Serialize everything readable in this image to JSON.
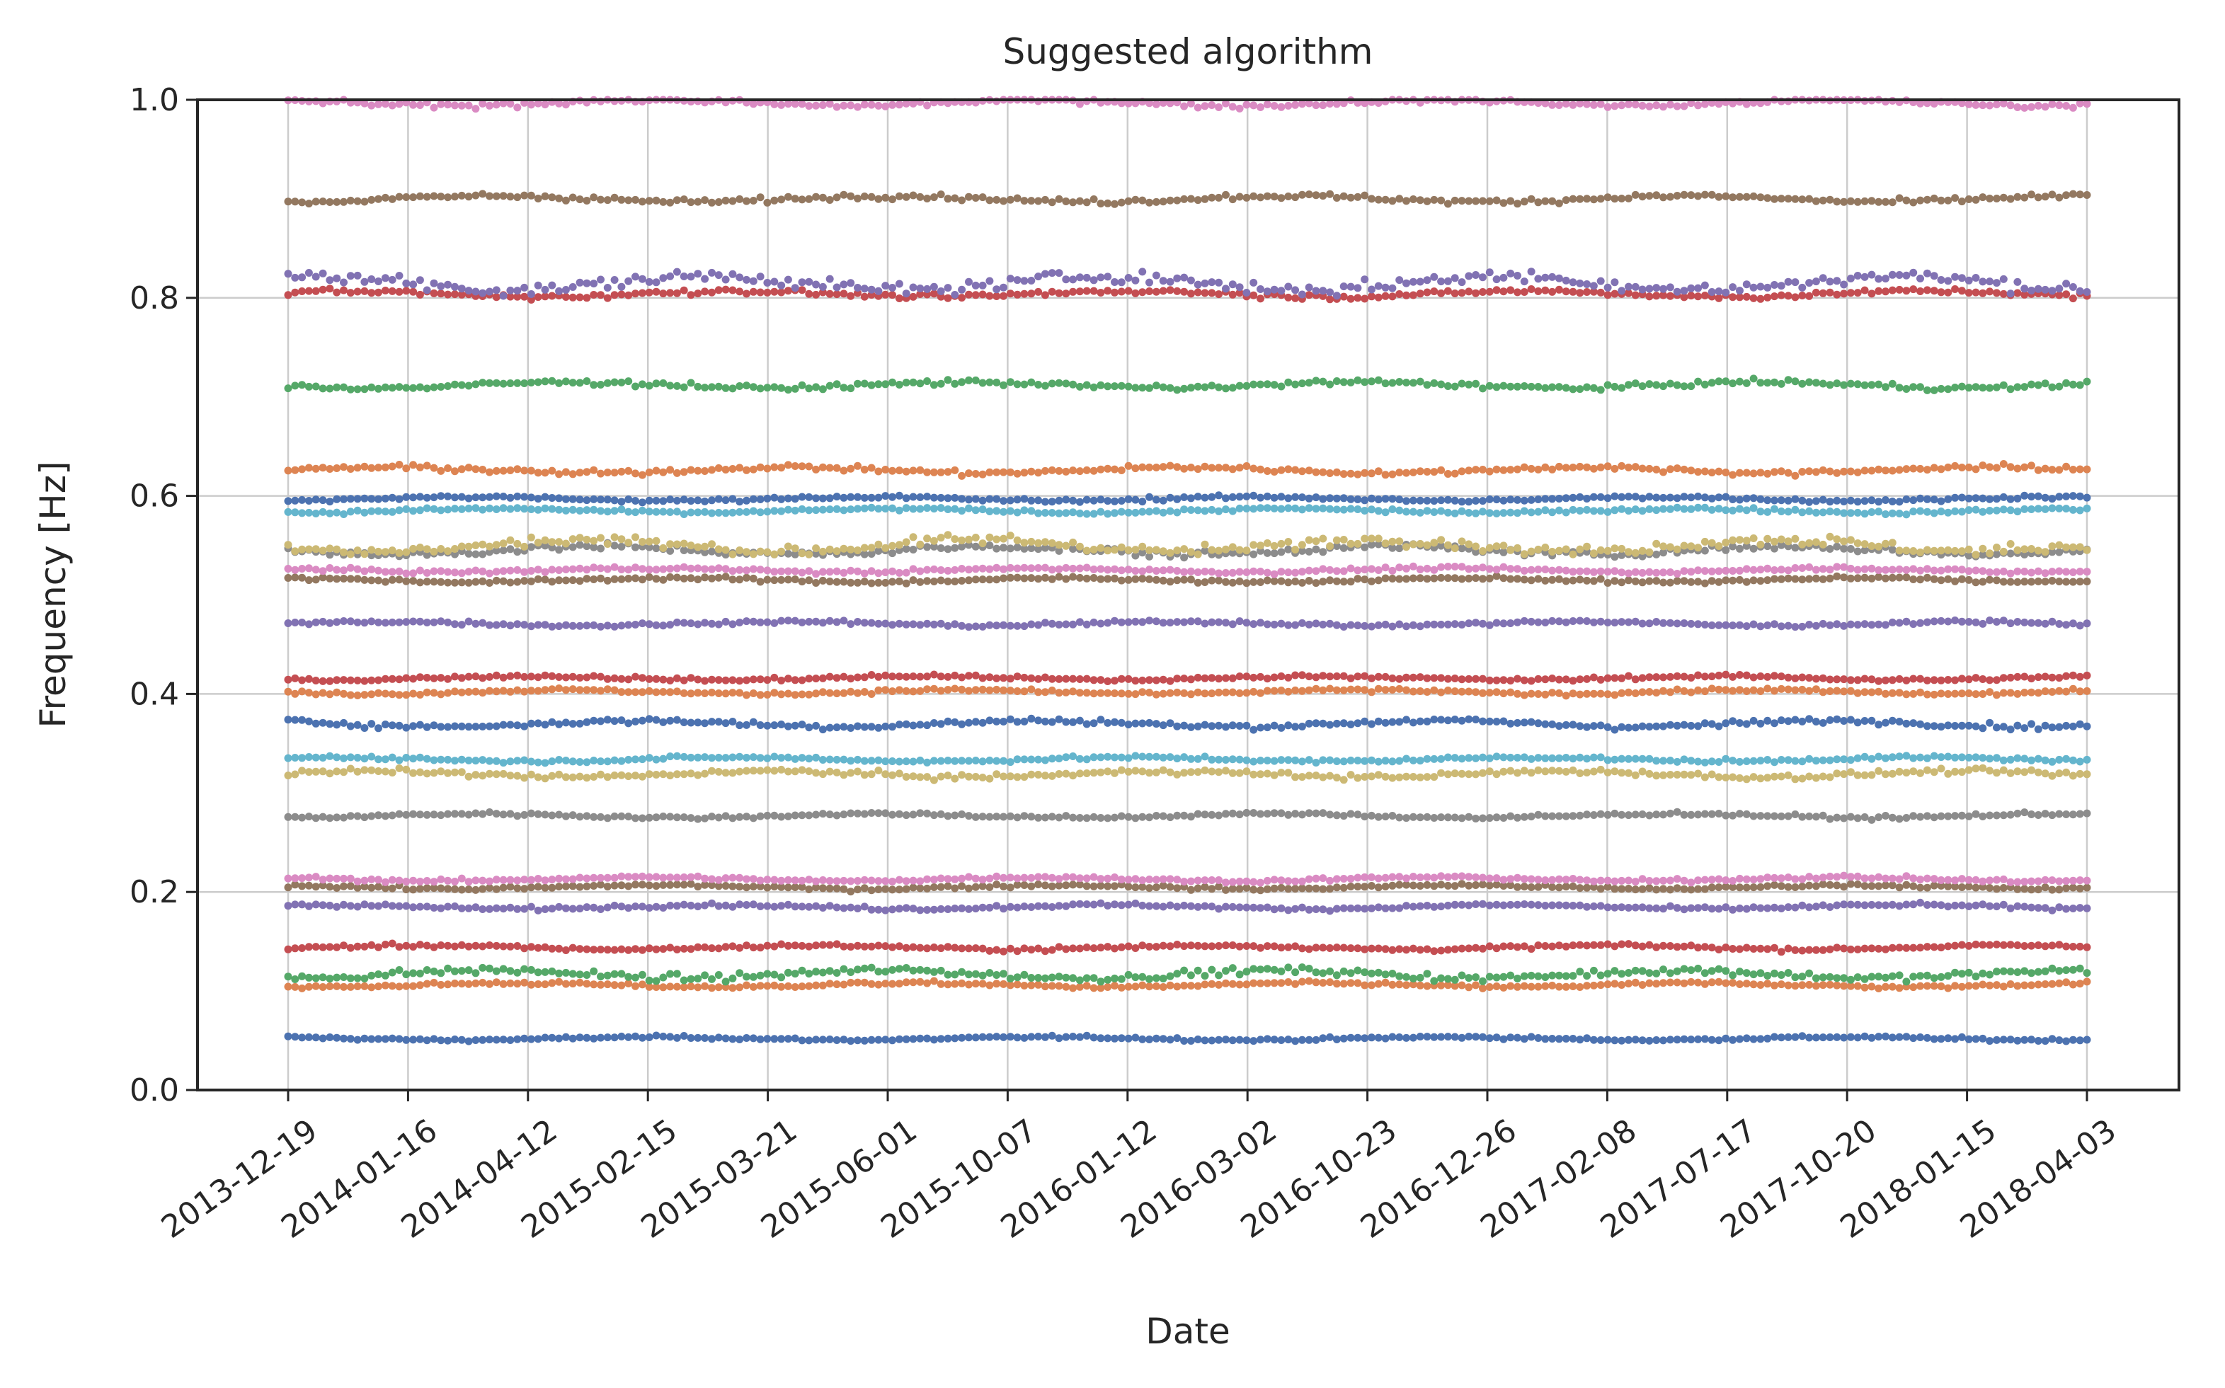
{
  "chart_data": {
    "type": "scatter",
    "title": "Suggested algorithm",
    "xlabel": "Date",
    "ylabel": "Frequency [Hz]",
    "x_tick_labels": [
      "2013-12-19",
      "2014-01-16",
      "2014-04-12",
      "2015-02-15",
      "2015-03-21",
      "2015-06-01",
      "2015-10-07",
      "2016-01-12",
      "2016-03-02",
      "2016-10-23",
      "2016-12-26",
      "2017-02-08",
      "2017-07-17",
      "2017-10-20",
      "2018-01-15",
      "2018-04-03"
    ],
    "y_tick_labels": [
      "0.0",
      "0.2",
      "0.4",
      "0.6",
      "0.8",
      "1.0"
    ],
    "y_ticks": [
      0.0,
      0.2,
      0.4,
      0.6,
      0.8,
      1.0
    ],
    "ylim": [
      0.0,
      1.0
    ],
    "grid": true,
    "legend": "none",
    "series": [
      {
        "level": 0.052,
        "spread": 0.0015,
        "color": "#4c72b0"
      },
      {
        "level": 0.106,
        "spread": 0.002,
        "color": "#dd8452"
      },
      {
        "level": 0.117,
        "spread": 0.004,
        "color": "#55a868"
      },
      {
        "level": 0.144,
        "spread": 0.002,
        "color": "#c44e52"
      },
      {
        "level": 0.185,
        "spread": 0.002,
        "color": "#8172b3"
      },
      {
        "level": 0.205,
        "spread": 0.002,
        "color": "#937860"
      },
      {
        "level": 0.213,
        "spread": 0.002,
        "color": "#da8bc3"
      },
      {
        "level": 0.277,
        "spread": 0.002,
        "color": "#8c8c8c"
      },
      {
        "level": 0.319,
        "spread": 0.003,
        "color": "#ccb974"
      },
      {
        "level": 0.334,
        "spread": 0.002,
        "color": "#64b5cd"
      },
      {
        "level": 0.37,
        "spread": 0.003,
        "color": "#4c72b0"
      },
      {
        "level": 0.402,
        "spread": 0.002,
        "color": "#dd8452"
      },
      {
        "level": 0.416,
        "spread": 0.002,
        "color": "#c44e52"
      },
      {
        "level": 0.471,
        "spread": 0.002,
        "color": "#8172b3"
      },
      {
        "level": 0.515,
        "spread": 0.002,
        "color": "#937860"
      },
      {
        "level": 0.525,
        "spread": 0.002,
        "color": "#da8bc3"
      },
      {
        "level": 0.545,
        "spread": 0.004,
        "color": "#8c8c8c"
      },
      {
        "level": 0.55,
        "spread": 0.006,
        "color": "#ccb974"
      },
      {
        "level": 0.585,
        "spread": 0.002,
        "color": "#64b5cd"
      },
      {
        "level": 0.597,
        "spread": 0.002,
        "color": "#4c72b0"
      },
      {
        "level": 0.626,
        "spread": 0.003,
        "color": "#dd8452"
      },
      {
        "level": 0.712,
        "spread": 0.003,
        "color": "#55a868"
      },
      {
        "level": 0.804,
        "spread": 0.003,
        "color": "#c44e52"
      },
      {
        "level": 0.815,
        "spread": 0.007,
        "color": "#8172b3"
      },
      {
        "level": 0.9,
        "spread": 0.003,
        "color": "#937860"
      },
      {
        "level": 0.997,
        "spread": 0.003,
        "color": "#da8bc3"
      }
    ]
  }
}
